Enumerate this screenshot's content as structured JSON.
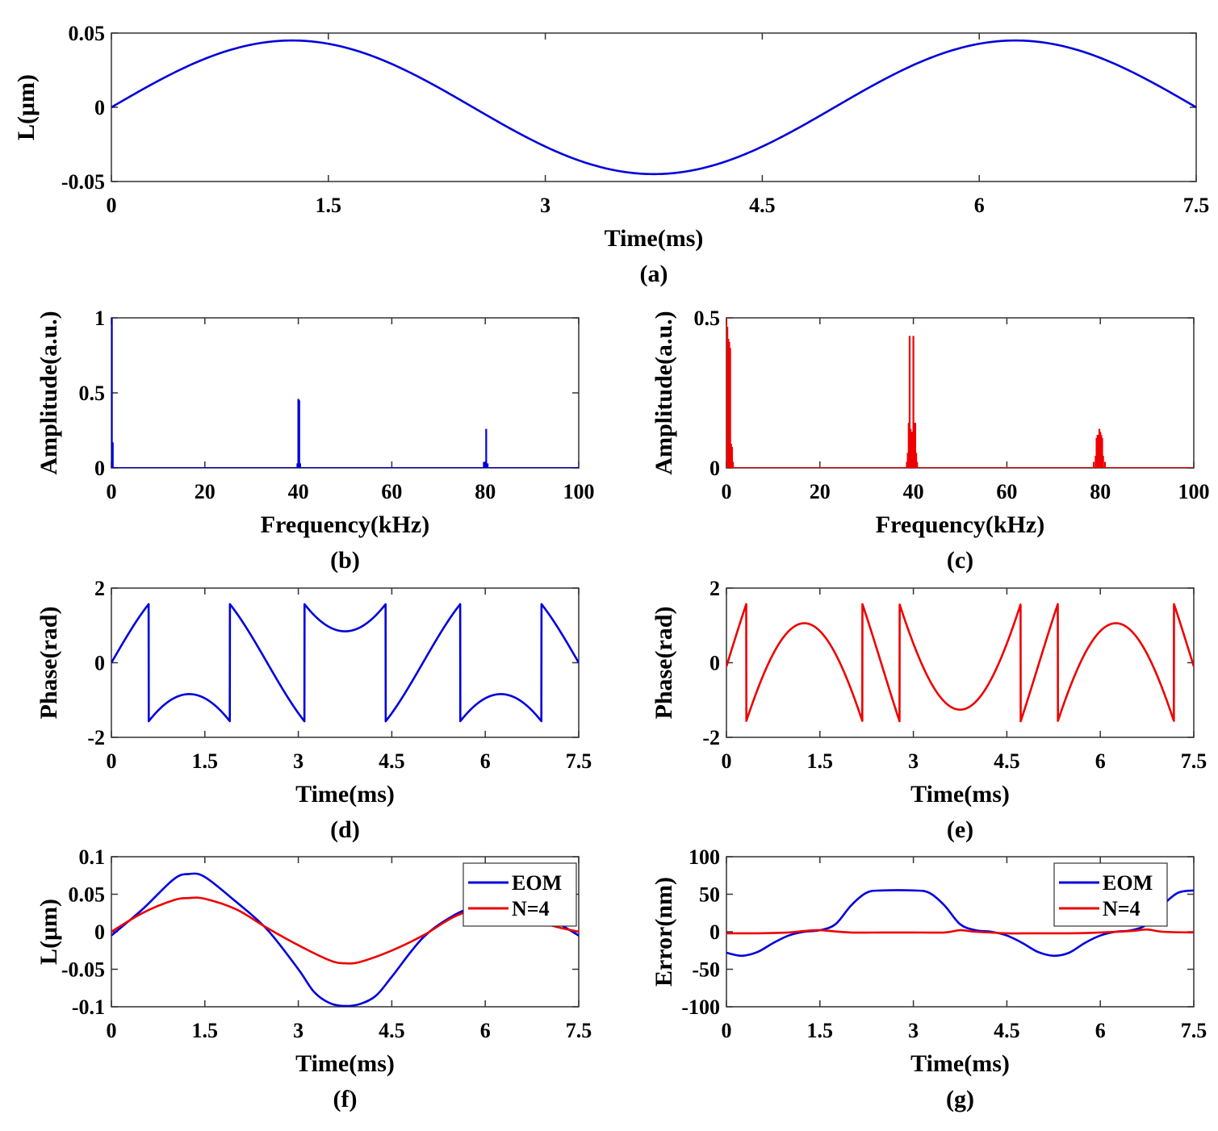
{
  "chart_data": [
    {
      "type": "line",
      "panel_label": "(a)",
      "xlabel": "Time(ms)",
      "ylabel": "L(μm)",
      "xlim": [
        0,
        7.5
      ],
      "ylim": [
        -0.05,
        0.05
      ],
      "xticks": [
        "0",
        "1.5",
        "3",
        "4.5",
        "6",
        "7.5"
      ],
      "yticks": [
        "-0.05",
        "0",
        "0.05"
      ],
      "series": [
        {
          "color": "#0000dd",
          "function": "sine",
          "amplitude": 0.045,
          "period_ms": 5.0,
          "samples_x": [
            0,
            1.25,
            2.5,
            3.75,
            5.0,
            6.25,
            7.5
          ],
          "samples_y": [
            0,
            0.045,
            0,
            -0.045,
            0,
            0.045,
            0
          ]
        }
      ]
    },
    {
      "type": "bar",
      "panel_label": "(b)",
      "xlabel": "Frequency(kHz)",
      "ylabel": "Amplitude(a.u.)",
      "xlim": [
        0,
        100
      ],
      "ylim": [
        0,
        1
      ],
      "xticks": [
        "0",
        "20",
        "40",
        "60",
        "80",
        "100"
      ],
      "yticks": [
        "0",
        "0.5",
        "1"
      ],
      "series": [
        {
          "color": "#0000dd",
          "peaks": [
            {
              "x": 0.1,
              "y": 1.0
            },
            {
              "x": 0.3,
              "y": 0.17
            },
            {
              "x": 39.8,
              "y": 0.03
            },
            {
              "x": 40.0,
              "y": 0.46
            },
            {
              "x": 40.2,
              "y": 0.45
            },
            {
              "x": 40.4,
              "y": 0.03
            },
            {
              "x": 79.7,
              "y": 0.04
            },
            {
              "x": 80.0,
              "y": 0.04
            },
            {
              "x": 80.2,
              "y": 0.26
            },
            {
              "x": 80.5,
              "y": 0.03
            }
          ]
        }
      ]
    },
    {
      "type": "bar",
      "panel_label": "(c)",
      "xlabel": "Frequency(kHz)",
      "ylabel": "Amplitude(a.u.)",
      "xlim": [
        0,
        100
      ],
      "ylim": [
        0,
        0.5
      ],
      "xticks": [
        "0",
        "20",
        "40",
        "60",
        "80",
        "100"
      ],
      "yticks": [
        "0",
        "0.5"
      ],
      "series": [
        {
          "color": "#ee0000",
          "peaks": [
            {
              "x": 0.0,
              "y": 0.5
            },
            {
              "x": 0.2,
              "y": 0.47
            },
            {
              "x": 0.4,
              "y": 0.43
            },
            {
              "x": 0.6,
              "y": 0.42
            },
            {
              "x": 0.8,
              "y": 0.4
            },
            {
              "x": 1.0,
              "y": 0.08
            },
            {
              "x": 1.2,
              "y": 0.07
            },
            {
              "x": 1.4,
              "y": 0.02
            },
            {
              "x": 38.6,
              "y": 0.02
            },
            {
              "x": 38.8,
              "y": 0.05
            },
            {
              "x": 39.0,
              "y": 0.15
            },
            {
              "x": 39.2,
              "y": 0.44
            },
            {
              "x": 39.4,
              "y": 0.13
            },
            {
              "x": 39.6,
              "y": 0.12
            },
            {
              "x": 39.8,
              "y": 0.12
            },
            {
              "x": 40.0,
              "y": 0.44
            },
            {
              "x": 40.2,
              "y": 0.15
            },
            {
              "x": 40.4,
              "y": 0.15
            },
            {
              "x": 40.6,
              "y": 0.05
            },
            {
              "x": 40.8,
              "y": 0.02
            },
            {
              "x": 78.6,
              "y": 0.02
            },
            {
              "x": 79.0,
              "y": 0.04
            },
            {
              "x": 79.2,
              "y": 0.1
            },
            {
              "x": 79.4,
              "y": 0.11
            },
            {
              "x": 79.6,
              "y": 0.11
            },
            {
              "x": 79.8,
              "y": 0.13
            },
            {
              "x": 80.0,
              "y": 0.12
            },
            {
              "x": 80.2,
              "y": 0.11
            },
            {
              "x": 80.4,
              "y": 0.1
            },
            {
              "x": 80.6,
              "y": 0.04
            },
            {
              "x": 81.0,
              "y": 0.02
            }
          ]
        }
      ]
    },
    {
      "type": "line",
      "panel_label": "(d)",
      "xlabel": "Time(ms)",
      "ylabel": "Phase(rad)",
      "xlim": [
        0,
        7.5
      ],
      "ylim": [
        -2,
        2
      ],
      "xticks": [
        "0",
        "1.5",
        "3",
        "4.5",
        "6",
        "7.5"
      ],
      "yticks": [
        "-2",
        "0",
        "2"
      ],
      "series": [
        {
          "color": "#0000dd",
          "function": "wrapped_phase",
          "amplitude_rad": 2.3,
          "period_ms": 5.0,
          "offset_rad": 0
        }
      ]
    },
    {
      "type": "line",
      "panel_label": "(e)",
      "xlabel": "Time(ms)",
      "ylabel": "Phase(rad)",
      "xlim": [
        0,
        7.5
      ],
      "ylim": [
        -2,
        2
      ],
      "xticks": [
        "0",
        "1.5",
        "3",
        "4.5",
        "6",
        "7.5"
      ],
      "yticks": [
        "-2",
        "0",
        "2"
      ],
      "series": [
        {
          "color": "#ee0000",
          "function": "wrapped_phase",
          "amplitude_rad": 4.3,
          "period_ms": 5.0,
          "offset_rad": -0.1
        }
      ]
    },
    {
      "type": "line",
      "panel_label": "(f)",
      "xlabel": "Time(ms)",
      "ylabel": "L(μm)",
      "xlim": [
        0,
        7.5
      ],
      "ylim": [
        -0.1,
        0.1
      ],
      "xticks": [
        "0",
        "1.5",
        "3",
        "4.5",
        "6",
        "7.5"
      ],
      "yticks": [
        "-0.1",
        "-0.05",
        "0",
        "0.05",
        "0.1"
      ],
      "legend": {
        "position": "top-right"
      },
      "series": [
        {
          "name": "EOM",
          "color": "#0000dd",
          "x": [
            0,
            0.5,
            1.0,
            1.25,
            1.5,
            2.0,
            2.5,
            3.0,
            3.25,
            3.5,
            3.75,
            4.0,
            4.25,
            4.5,
            5.0,
            5.5,
            6.0,
            6.25,
            6.5,
            7.0,
            7.5
          ],
          "y": [
            -0.005,
            0.03,
            0.07,
            0.077,
            0.073,
            0.04,
            0.003,
            -0.05,
            -0.08,
            -0.095,
            -0.099,
            -0.096,
            -0.085,
            -0.06,
            -0.008,
            0.022,
            0.04,
            0.05,
            0.045,
            0.02,
            -0.005
          ]
        },
        {
          "name": "N=4",
          "color": "#ee0000",
          "x": [
            0,
            0.5,
            1.0,
            1.25,
            1.5,
            2.0,
            2.5,
            3.0,
            3.5,
            3.75,
            4.0,
            4.5,
            5.0,
            5.5,
            6.0,
            6.25,
            6.5,
            7.0,
            7.5
          ],
          "y": [
            0,
            0.025,
            0.042,
            0.045,
            0.044,
            0.03,
            0.005,
            -0.018,
            -0.038,
            -0.042,
            -0.04,
            -0.025,
            -0.005,
            0.02,
            0.035,
            0.04,
            0.03,
            0.01,
            0
          ]
        }
      ]
    },
    {
      "type": "line",
      "panel_label": "(g)",
      "xlabel": "Time(ms)",
      "ylabel": "Error(nm)",
      "xlim": [
        0,
        7.5
      ],
      "ylim": [
        -100,
        100
      ],
      "xticks": [
        "0",
        "1.5",
        "3",
        "4.5",
        "6",
        "7.5"
      ],
      "yticks": [
        "-100",
        "-50",
        "0",
        "50",
        "100"
      ],
      "legend": {
        "position": "top-right"
      },
      "series": [
        {
          "name": "EOM",
          "color": "#0000dd",
          "x": [
            0,
            0.25,
            0.5,
            0.75,
            1.0,
            1.25,
            1.5,
            1.75,
            2.0,
            2.25,
            2.5,
            3.0,
            3.25,
            3.5,
            3.75,
            4.0,
            4.25,
            4.5,
            4.75,
            5.0,
            5.25,
            5.5,
            5.75,
            6.0,
            6.25,
            6.5,
            6.75,
            7.0,
            7.25,
            7.5
          ],
          "y": [
            -28,
            -32,
            -27,
            -15,
            -5,
            0,
            2,
            10,
            35,
            52,
            55,
            55,
            52,
            35,
            10,
            2,
            0,
            -5,
            -15,
            -27,
            -32,
            -28,
            -15,
            -5,
            0,
            2,
            10,
            35,
            52,
            55
          ]
        },
        {
          "name": "N=4",
          "color": "#ee0000",
          "x": [
            0,
            0.5,
            1.0,
            1.25,
            1.5,
            2.0,
            2.5,
            3.0,
            3.5,
            3.75,
            4.0,
            4.5,
            5.0,
            5.5,
            6.0,
            6.5,
            6.75,
            7.0,
            7.5
          ],
          "y": [
            -2,
            -2,
            -1,
            1,
            2,
            -1,
            -1,
            -1,
            -1,
            2,
            0,
            -2,
            -2,
            -2,
            -1,
            1,
            3,
            0,
            -1
          ]
        }
      ]
    }
  ]
}
